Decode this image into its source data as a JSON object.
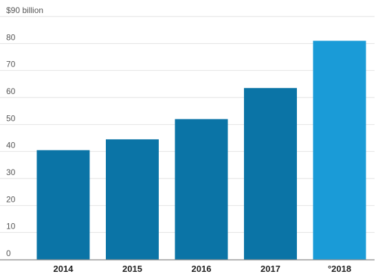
{
  "chart_data": {
    "type": "bar",
    "title": "",
    "xlabel": "",
    "ylabel": "",
    "categories": [
      "2014",
      "2015",
      "2016",
      "2017",
      "°2018"
    ],
    "values": [
      40.5,
      44.5,
      52.0,
      63.5,
      81.0
    ],
    "ylim": [
      0,
      90
    ],
    "yticks": [
      0,
      10,
      20,
      30,
      40,
      50,
      60,
      70,
      80
    ],
    "top_tick_label": "$90 billion",
    "bar_colors": [
      "#0b74a6",
      "#0b74a6",
      "#0b74a6",
      "#0b74a6",
      "#1a9bd7"
    ],
    "grid": true,
    "legend": "none"
  }
}
